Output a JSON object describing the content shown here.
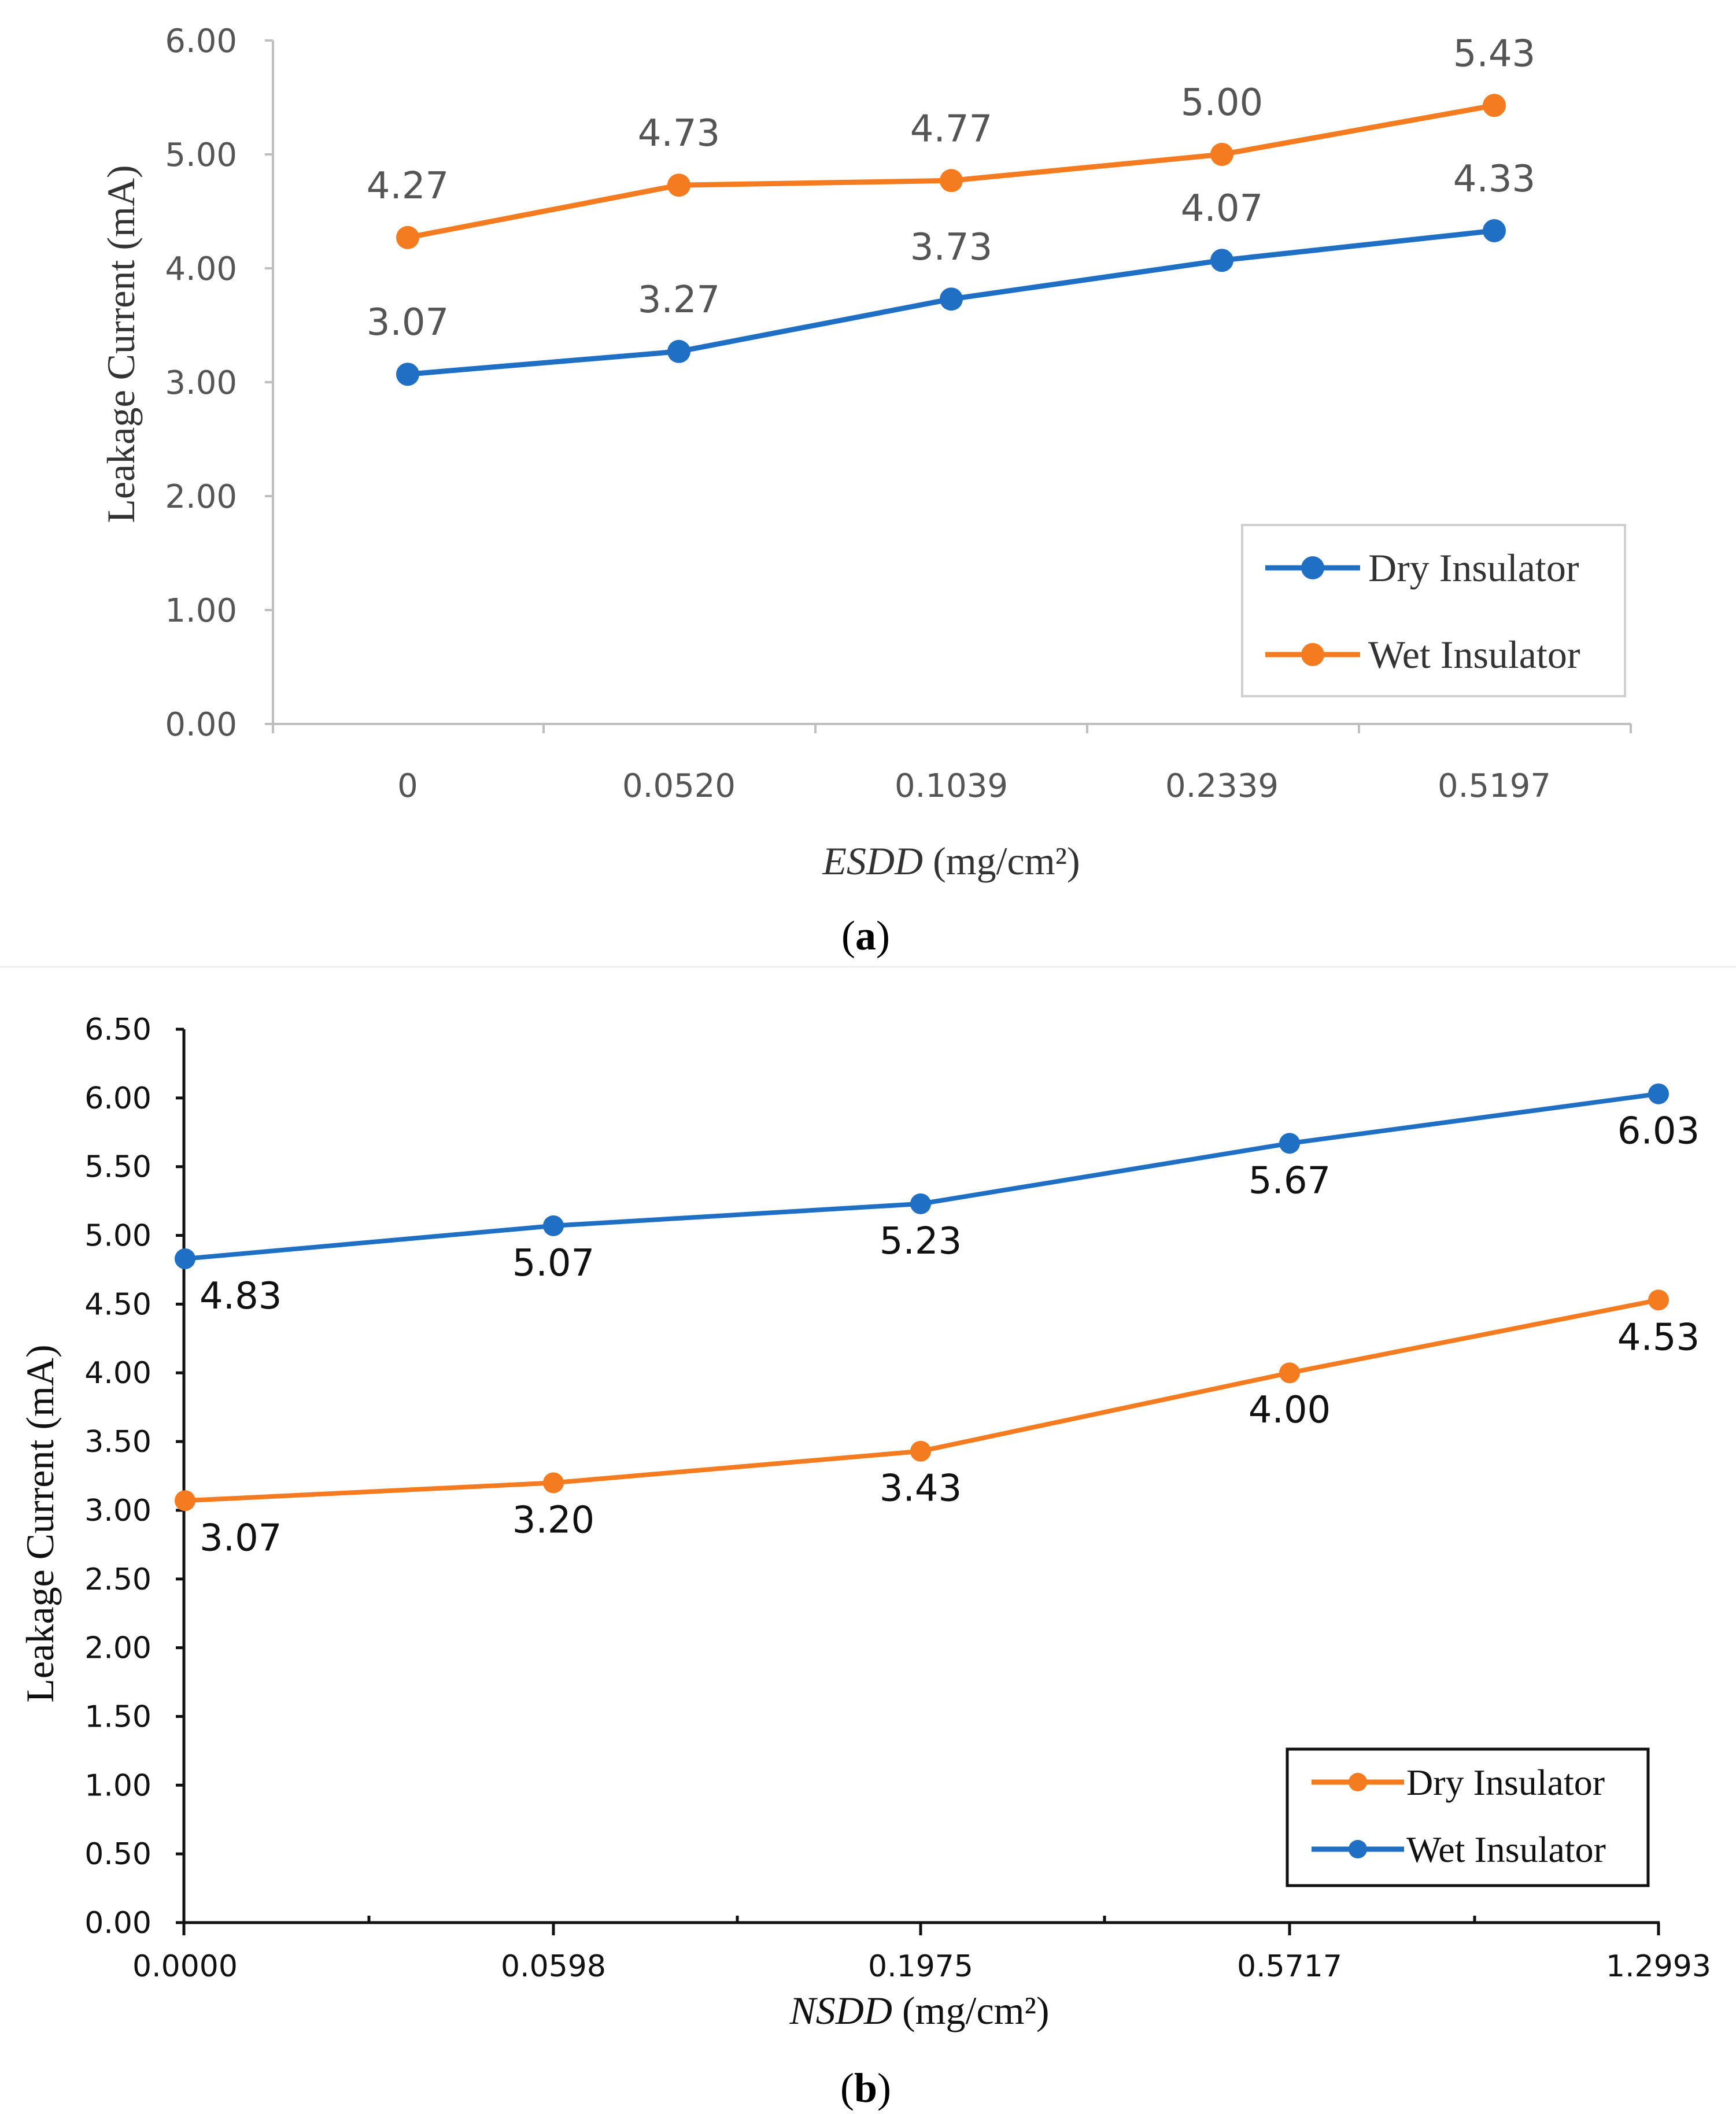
{
  "chart_data": [
    {
      "panel_label": "a",
      "type": "line",
      "categories": [
        "0",
        "0.0520",
        "0.1039",
        "0.2339",
        "0.5197"
      ],
      "xlabel_italic": "ESDD",
      "xlabel_unit": "(mg/cm²)",
      "ylabel": "Leakage Current (mA)",
      "ylim": [
        0,
        6
      ],
      "yticks": [
        "0.00",
        "1.00",
        "2.00",
        "3.00",
        "4.00",
        "5.00",
        "6.00"
      ],
      "grid": false,
      "legend_position": "bottom-right",
      "series": [
        {
          "name": "Dry Insulator",
          "color": "#1f6fc5",
          "values": [
            3.07,
            3.27,
            3.73,
            4.07,
            4.33
          ],
          "labels": [
            "3.07",
            "3.27",
            "3.73",
            "4.07",
            "4.33"
          ]
        },
        {
          "name": "Wet Insulator",
          "color": "#f47b20",
          "values": [
            4.27,
            4.73,
            4.77,
            5.0,
            5.43
          ],
          "labels": [
            "4.27",
            "4.73",
            "4.77",
            "5.00",
            "5.43"
          ]
        }
      ]
    },
    {
      "panel_label": "b",
      "type": "line",
      "categories": [
        "0.0000",
        "0.0598",
        "0.1975",
        "0.5717",
        "1.2993"
      ],
      "xlabel_italic": "NSDD",
      "xlabel_unit": "(mg/cm²)",
      "ylabel": "Leakage Current (mA)",
      "ylim": [
        0,
        6.5
      ],
      "yticks": [
        "0.00",
        "0.50",
        "1.00",
        "1.50",
        "2.00",
        "2.50",
        "3.00",
        "3.50",
        "4.00",
        "4.50",
        "5.00",
        "5.50",
        "6.00",
        "6.50"
      ],
      "grid": false,
      "legend_position": "bottom-right",
      "series": [
        {
          "name": "Dry Insulator",
          "color": "#f47b20",
          "values": [
            3.07,
            3.2,
            3.43,
            4.0,
            4.53
          ],
          "labels": [
            "3.07",
            "3.20",
            "3.43",
            "4.00",
            "4.53"
          ]
        },
        {
          "name": "Wet Insulator",
          "color": "#1f6fc5",
          "values": [
            4.83,
            5.07,
            5.23,
            5.67,
            6.03
          ],
          "labels": [
            "4.83",
            "5.07",
            "5.23",
            "5.67",
            "6.03"
          ]
        }
      ]
    }
  ]
}
